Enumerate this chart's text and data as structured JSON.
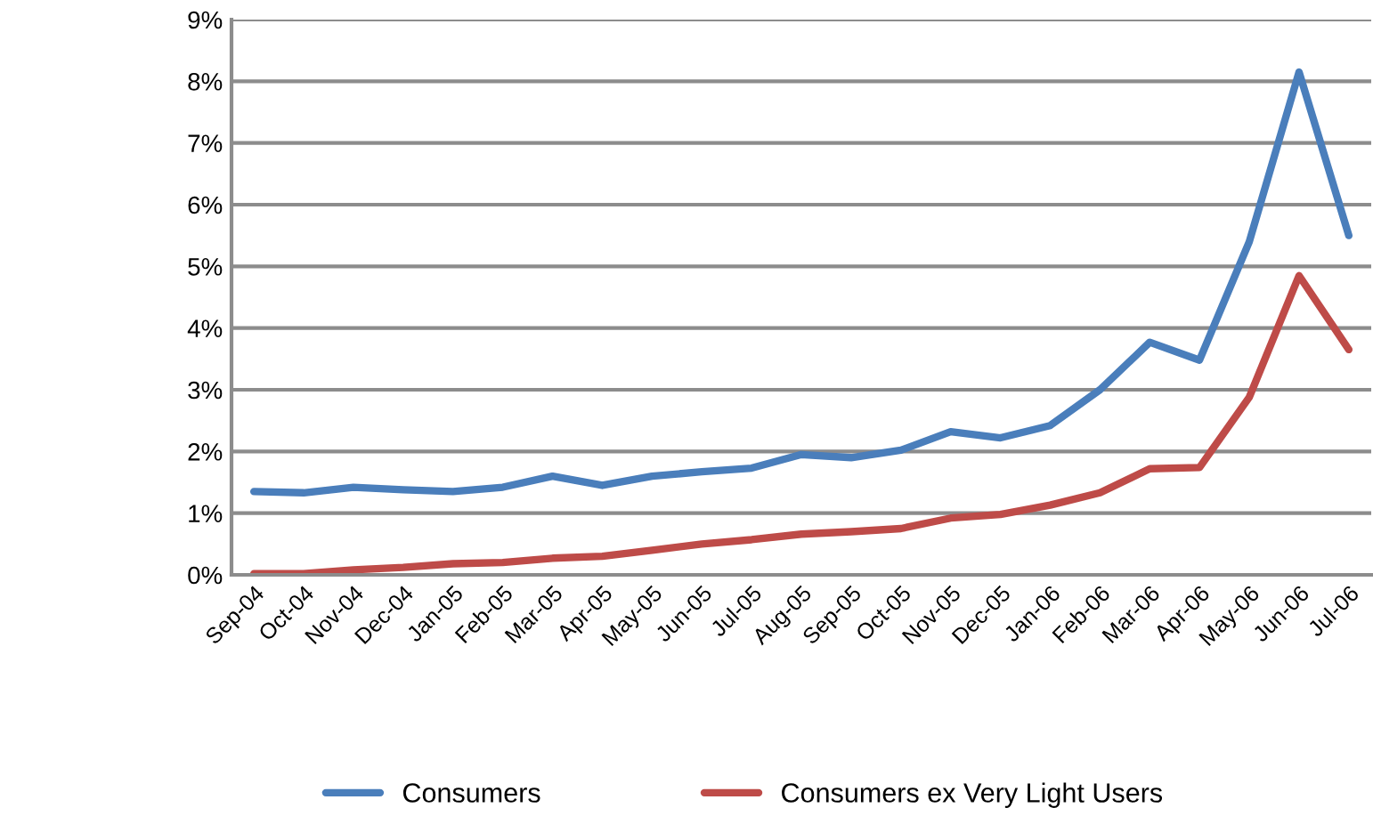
{
  "chart_data": {
    "type": "line",
    "categories": [
      "Sep-04",
      "Oct-04",
      "Nov-04",
      "Dec-04",
      "Jan-05",
      "Feb-05",
      "Mar-05",
      "Apr-05",
      "May-05",
      "Jun-05",
      "Jul-05",
      "Aug-05",
      "Sep-05",
      "Oct-05",
      "Nov-05",
      "Dec-05",
      "Jan-06",
      "Feb-06",
      "Mar-06",
      "Apr-06",
      "May-06",
      "Jun-06",
      "Jul-06"
    ],
    "series": [
      {
        "name": "Consumers",
        "color": "#4a7ebb",
        "values": [
          1.35,
          1.33,
          1.42,
          1.38,
          1.35,
          1.42,
          1.6,
          1.45,
          1.6,
          1.67,
          1.73,
          1.95,
          1.9,
          2.02,
          2.32,
          2.22,
          2.42,
          3.0,
          3.77,
          3.48,
          5.4,
          8.15,
          5.5
        ]
      },
      {
        "name": "Consumers ex Very Light Users",
        "color": "#be4b48",
        "values": [
          0.02,
          0.02,
          0.08,
          0.12,
          0.18,
          0.2,
          0.27,
          0.3,
          0.4,
          0.5,
          0.57,
          0.66,
          0.7,
          0.75,
          0.92,
          0.98,
          1.13,
          1.33,
          1.72,
          1.74,
          2.88,
          4.85,
          3.65
        ]
      }
    ],
    "ylim": [
      0,
      9
    ],
    "yticks": [
      {
        "value": 0,
        "label": "0%"
      },
      {
        "value": 1,
        "label": "1%"
      },
      {
        "value": 2,
        "label": "2%"
      },
      {
        "value": 3,
        "label": "3%"
      },
      {
        "value": 4,
        "label": "4%"
      },
      {
        "value": 5,
        "label": "5%"
      },
      {
        "value": 6,
        "label": "6%"
      },
      {
        "value": 7,
        "label": "7%"
      },
      {
        "value": 8,
        "label": "8%"
      },
      {
        "value": 9,
        "label": "9%"
      }
    ],
    "grid": "y",
    "legend": "bottom",
    "marker": "none",
    "line_style": "solid"
  }
}
